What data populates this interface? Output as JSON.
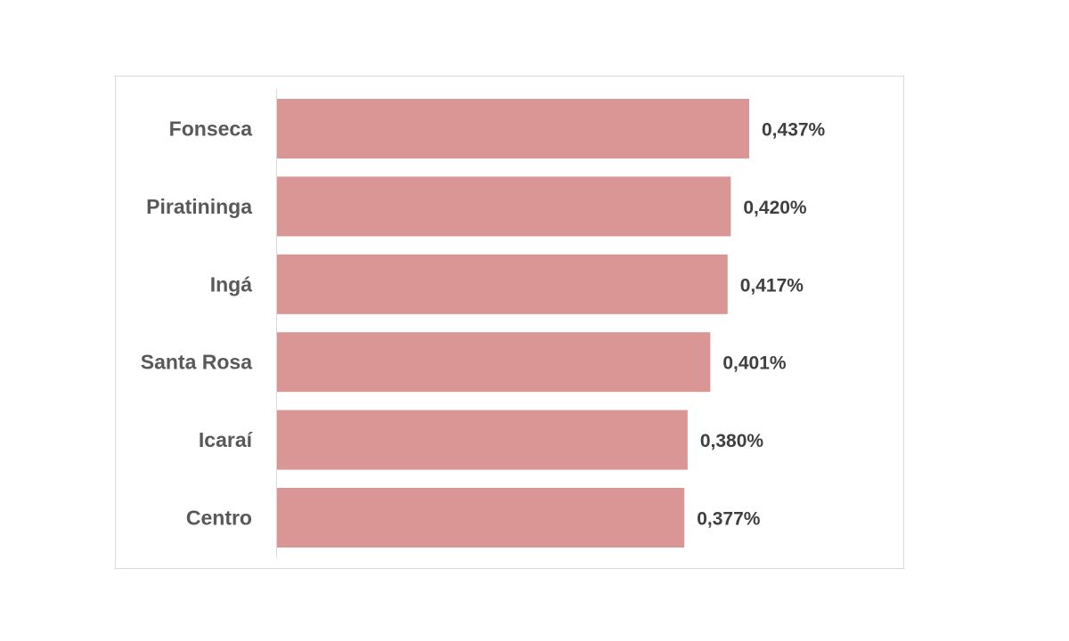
{
  "chart_data": {
    "type": "bar",
    "orientation": "horizontal",
    "categories": [
      "Fonseca",
      "Piratininga",
      "Ingá",
      "Santa Rosa",
      "Icaraí",
      "Centro"
    ],
    "values": [
      0.437,
      0.42,
      0.417,
      0.401,
      0.38,
      0.377
    ],
    "value_labels": [
      "0,437%",
      "0,420%",
      "0,417%",
      "0,401%",
      "0,380%",
      "0,377%"
    ],
    "unit": "%",
    "title": "",
    "xlabel": "",
    "ylabel": "",
    "xlim": [
      0,
      0.437
    ],
    "grid": false,
    "legend": "none",
    "bar_color": "#d99694"
  }
}
